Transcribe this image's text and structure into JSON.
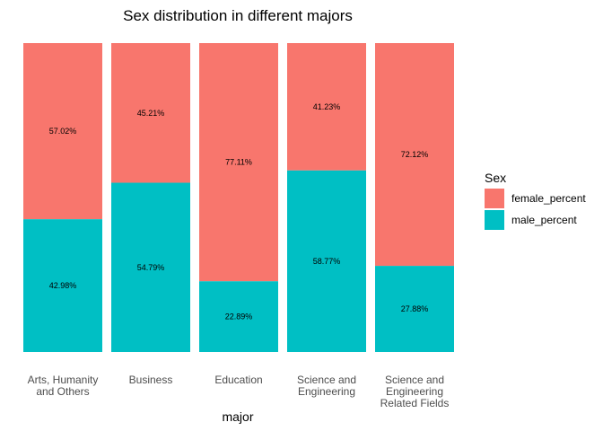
{
  "chart_data": {
    "type": "bar",
    "stacked": true,
    "title": "Sex distribution in different majors",
    "xlabel": "major",
    "ylabel": "",
    "ylim": [
      0,
      100
    ],
    "grid": false,
    "legend_position": "right",
    "legend_title": "Sex",
    "categories": [
      [
        "Arts, Humanity",
        "and Others"
      ],
      [
        "Business"
      ],
      [
        "Education"
      ],
      [
        "Science and",
        "Engineering"
      ],
      [
        "Science and",
        "Engineering",
        "Related Fields"
      ]
    ],
    "series": [
      {
        "name": "female_percent",
        "color": "#F8766D",
        "values": [
          57.02,
          45.21,
          77.11,
          41.23,
          72.12
        ],
        "labels": [
          "57.02%",
          "45.21%",
          "77.11%",
          "41.23%",
          "72.12%"
        ]
      },
      {
        "name": "male_percent",
        "color": "#00BFC4",
        "values": [
          42.98,
          54.79,
          22.89,
          58.77,
          27.88
        ],
        "labels": [
          "42.98%",
          "54.79%",
          "22.89%",
          "58.77%",
          "27.88%"
        ]
      }
    ]
  }
}
